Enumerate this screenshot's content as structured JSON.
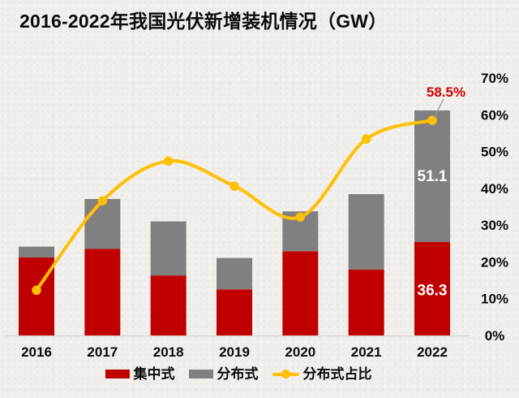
{
  "page": {
    "background": "#f0efec"
  },
  "header": {
    "title": "2016-2022年我国光伏新增装机情况（GW）",
    "color": "#0b0b0b"
  },
  "chart_data": {
    "type": "bar",
    "subtype": "stacked-bars-with-percentage-line",
    "title": "2016-2022年我国光伏新增装机情况（GW）",
    "categories": [
      "2016",
      "2017",
      "2018",
      "2019",
      "2020",
      "2021",
      "2022"
    ],
    "series": [
      {
        "name": "集中式",
        "en": "centralized",
        "type": "bar",
        "stacked": true,
        "color": "#c00000",
        "values": [
          30.3,
          33.6,
          23.3,
          17.9,
          32.7,
          25.6,
          36.3
        ]
      },
      {
        "name": "分布式",
        "en": "distributed",
        "type": "bar",
        "stacked": true,
        "color": "#808080",
        "values": [
          4.2,
          19.4,
          21.0,
          12.2,
          15.5,
          29.3,
          51.1
        ]
      },
      {
        "name": "分布式占比",
        "en": "distributed-share",
        "type": "line",
        "axis": "right",
        "unit": "%",
        "color": "#ffc000",
        "values": [
          12.3,
          36.6,
          47.4,
          40.6,
          32.2,
          53.4,
          58.5
        ]
      }
    ],
    "left_axis": {
      "visible": false,
      "max_gw": 100
    },
    "right_axis": {
      "min": 0,
      "max": 70,
      "unit": "%",
      "ticks": [
        "0%",
        "10%",
        "20%",
        "30%",
        "40%",
        "50%",
        "60%",
        "70%"
      ]
    },
    "grid": false,
    "legend_position": "bottom",
    "data_labels": {
      "bar_last_distributed": {
        "text": "51.1",
        "color": "#ffffff"
      },
      "bar_last_centralized": {
        "text": "36.3",
        "color": "#ffffff"
      },
      "line_last_callout": {
        "text": "58.5%",
        "color": "#d00000",
        "leader_color": "#9a9a96"
      }
    },
    "axis_line_color": "#d8d5d0",
    "tick_text_color": "#0b0b0b"
  },
  "legend": {
    "items": [
      {
        "label": "集中式",
        "en": "centralized",
        "swatch": "bar",
        "color": "#c00000"
      },
      {
        "label": "分布式",
        "en": "distributed",
        "swatch": "bar",
        "color": "#808080"
      },
      {
        "label": "分布式占比",
        "en": "distributed-share",
        "swatch": "line",
        "color": "#ffc000"
      }
    ]
  }
}
